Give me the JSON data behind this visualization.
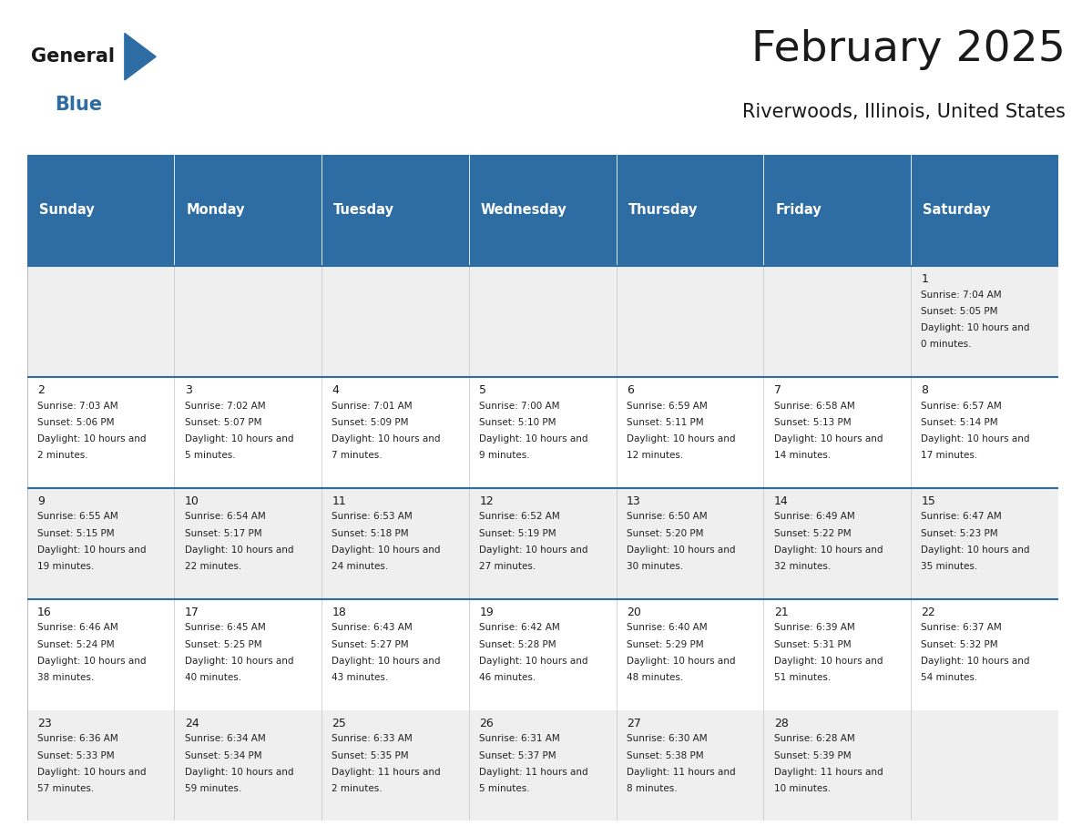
{
  "title": "February 2025",
  "subtitle": "Riverwoods, Illinois, United States",
  "header_bg": "#2E6DA4",
  "header_text_color": "#FFFFFF",
  "cell_bg_light": "#EFEFEF",
  "cell_bg_white": "#FFFFFF",
  "cell_border_top_color": "#2E6DA4",
  "cell_border_color": "#CCCCCC",
  "day_headers": [
    "Sunday",
    "Monday",
    "Tuesday",
    "Wednesday",
    "Thursday",
    "Friday",
    "Saturday"
  ],
  "days_data": [
    {
      "day": 1,
      "col": 6,
      "row": 0,
      "sunrise": "7:04 AM",
      "sunset": "5:05 PM",
      "daylight": "10 hours and 0 minutes."
    },
    {
      "day": 2,
      "col": 0,
      "row": 1,
      "sunrise": "7:03 AM",
      "sunset": "5:06 PM",
      "daylight": "10 hours and 2 minutes."
    },
    {
      "day": 3,
      "col": 1,
      "row": 1,
      "sunrise": "7:02 AM",
      "sunset": "5:07 PM",
      "daylight": "10 hours and 5 minutes."
    },
    {
      "day": 4,
      "col": 2,
      "row": 1,
      "sunrise": "7:01 AM",
      "sunset": "5:09 PM",
      "daylight": "10 hours and 7 minutes."
    },
    {
      "day": 5,
      "col": 3,
      "row": 1,
      "sunrise": "7:00 AM",
      "sunset": "5:10 PM",
      "daylight": "10 hours and 9 minutes."
    },
    {
      "day": 6,
      "col": 4,
      "row": 1,
      "sunrise": "6:59 AM",
      "sunset": "5:11 PM",
      "daylight": "10 hours and 12 minutes."
    },
    {
      "day": 7,
      "col": 5,
      "row": 1,
      "sunrise": "6:58 AM",
      "sunset": "5:13 PM",
      "daylight": "10 hours and 14 minutes."
    },
    {
      "day": 8,
      "col": 6,
      "row": 1,
      "sunrise": "6:57 AM",
      "sunset": "5:14 PM",
      "daylight": "10 hours and 17 minutes."
    },
    {
      "day": 9,
      "col": 0,
      "row": 2,
      "sunrise": "6:55 AM",
      "sunset": "5:15 PM",
      "daylight": "10 hours and 19 minutes."
    },
    {
      "day": 10,
      "col": 1,
      "row": 2,
      "sunrise": "6:54 AM",
      "sunset": "5:17 PM",
      "daylight": "10 hours and 22 minutes."
    },
    {
      "day": 11,
      "col": 2,
      "row": 2,
      "sunrise": "6:53 AM",
      "sunset": "5:18 PM",
      "daylight": "10 hours and 24 minutes."
    },
    {
      "day": 12,
      "col": 3,
      "row": 2,
      "sunrise": "6:52 AM",
      "sunset": "5:19 PM",
      "daylight": "10 hours and 27 minutes."
    },
    {
      "day": 13,
      "col": 4,
      "row": 2,
      "sunrise": "6:50 AM",
      "sunset": "5:20 PM",
      "daylight": "10 hours and 30 minutes."
    },
    {
      "day": 14,
      "col": 5,
      "row": 2,
      "sunrise": "6:49 AM",
      "sunset": "5:22 PM",
      "daylight": "10 hours and 32 minutes."
    },
    {
      "day": 15,
      "col": 6,
      "row": 2,
      "sunrise": "6:47 AM",
      "sunset": "5:23 PM",
      "daylight": "10 hours and 35 minutes."
    },
    {
      "day": 16,
      "col": 0,
      "row": 3,
      "sunrise": "6:46 AM",
      "sunset": "5:24 PM",
      "daylight": "10 hours and 38 minutes."
    },
    {
      "day": 17,
      "col": 1,
      "row": 3,
      "sunrise": "6:45 AM",
      "sunset": "5:25 PM",
      "daylight": "10 hours and 40 minutes."
    },
    {
      "day": 18,
      "col": 2,
      "row": 3,
      "sunrise": "6:43 AM",
      "sunset": "5:27 PM",
      "daylight": "10 hours and 43 minutes."
    },
    {
      "day": 19,
      "col": 3,
      "row": 3,
      "sunrise": "6:42 AM",
      "sunset": "5:28 PM",
      "daylight": "10 hours and 46 minutes."
    },
    {
      "day": 20,
      "col": 4,
      "row": 3,
      "sunrise": "6:40 AM",
      "sunset": "5:29 PM",
      "daylight": "10 hours and 48 minutes."
    },
    {
      "day": 21,
      "col": 5,
      "row": 3,
      "sunrise": "6:39 AM",
      "sunset": "5:31 PM",
      "daylight": "10 hours and 51 minutes."
    },
    {
      "day": 22,
      "col": 6,
      "row": 3,
      "sunrise": "6:37 AM",
      "sunset": "5:32 PM",
      "daylight": "10 hours and 54 minutes."
    },
    {
      "day": 23,
      "col": 0,
      "row": 4,
      "sunrise": "6:36 AM",
      "sunset": "5:33 PM",
      "daylight": "10 hours and 57 minutes."
    },
    {
      "day": 24,
      "col": 1,
      "row": 4,
      "sunrise": "6:34 AM",
      "sunset": "5:34 PM",
      "daylight": "10 hours and 59 minutes."
    },
    {
      "day": 25,
      "col": 2,
      "row": 4,
      "sunrise": "6:33 AM",
      "sunset": "5:35 PM",
      "daylight": "11 hours and 2 minutes."
    },
    {
      "day": 26,
      "col": 3,
      "row": 4,
      "sunrise": "6:31 AM",
      "sunset": "5:37 PM",
      "daylight": "11 hours and 5 minutes."
    },
    {
      "day": 27,
      "col": 4,
      "row": 4,
      "sunrise": "6:30 AM",
      "sunset": "5:38 PM",
      "daylight": "11 hours and 8 minutes."
    },
    {
      "day": 28,
      "col": 5,
      "row": 4,
      "sunrise": "6:28 AM",
      "sunset": "5:39 PM",
      "daylight": "11 hours and 10 minutes."
    }
  ],
  "num_rows": 5,
  "num_cols": 7,
  "logo_text_general": "General",
  "logo_text_blue": "Blue",
  "logo_color_general": "#1A1A1A",
  "logo_color_blue": "#2E6DA4",
  "logo_triangle_color": "#2E6DA4",
  "fig_width": 11.88,
  "fig_height": 9.18
}
